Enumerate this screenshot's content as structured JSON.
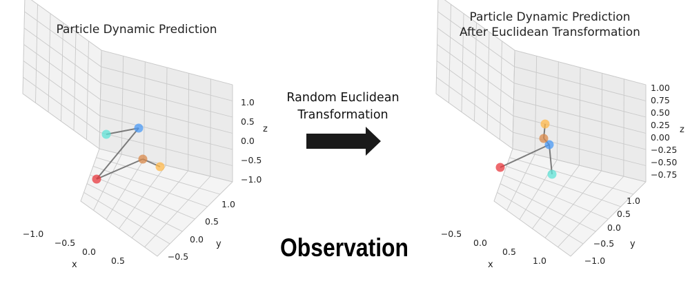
{
  "chart_data": [
    {
      "type": "scatter3d",
      "title": "Particle Dynamic Prediction",
      "xlabel": "x",
      "ylabel": "y",
      "zlabel": "z",
      "xticks": [
        "−1.0",
        "−0.5",
        "0.0",
        "0.5"
      ],
      "yticks": [
        "−0.5",
        "0.0",
        "0.5",
        "1.0"
      ],
      "zticks": [
        "−1.0",
        "−0.5",
        "0.0",
        "0.5",
        "1.0"
      ],
      "grid": true,
      "points": [
        {
          "name": "red",
          "color": "#e8383d"
        },
        {
          "name": "blue",
          "color": "#4a9af5"
        },
        {
          "name": "cyan",
          "color": "#5fe3d7"
        },
        {
          "name": "brown",
          "color": "#d98a4b"
        },
        {
          "name": "orange",
          "color": "#ffb84a"
        }
      ],
      "edges": [
        [
          0,
          1
        ],
        [
          1,
          2
        ],
        [
          0,
          3
        ],
        [
          3,
          4
        ]
      ]
    },
    {
      "type": "scatter3d",
      "title": "Particle Dynamic Prediction\nAfter Euclidean Transformation",
      "xlabel": "x",
      "ylabel": "y",
      "zlabel": "z",
      "xticks": [
        "−0.5",
        "0.0",
        "0.5",
        "1.0"
      ],
      "yticks": [
        "−1.0",
        "−0.5",
        "0.0",
        "0.5",
        "1.0"
      ],
      "zticks": [
        "−0.75",
        "−0.50",
        "−0.25",
        "0.00",
        "0.25",
        "0.50",
        "0.75",
        "1.00"
      ],
      "grid": true,
      "points": [
        {
          "name": "red",
          "color": "#e8383d"
        },
        {
          "name": "blue",
          "color": "#4a9af5"
        },
        {
          "name": "cyan",
          "color": "#5fe3d7"
        },
        {
          "name": "brown",
          "color": "#d98a4b"
        },
        {
          "name": "orange",
          "color": "#ffb84a"
        }
      ],
      "edges": [
        [
          0,
          1
        ],
        [
          1,
          2
        ],
        [
          1,
          3
        ],
        [
          3,
          4
        ]
      ]
    }
  ],
  "annotation": {
    "transform_label": "Random Euclidean\nTransformation",
    "arrow_color": "#1a1a1a",
    "observation_label": "Observation"
  }
}
